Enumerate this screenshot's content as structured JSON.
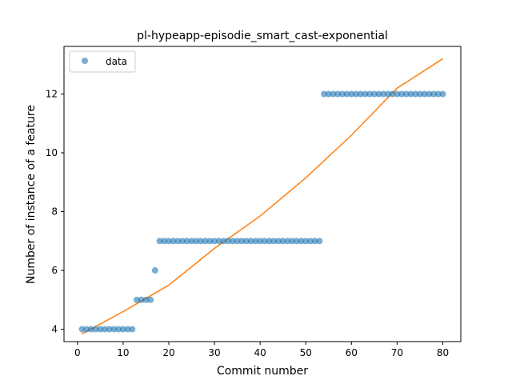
{
  "chart_data": {
    "type": "scatter",
    "title": "pl-hypeapp-episodie_smart_cast-exponential",
    "xlabel": "Commit number",
    "ylabel": "Number of instance of a feature",
    "xlim": [
      -2.95,
      83.95
    ],
    "ylim": [
      3.58,
      13.62
    ],
    "xticks": [
      0,
      10,
      20,
      30,
      40,
      50,
      60,
      70,
      80
    ],
    "yticks": [
      4,
      6,
      8,
      10,
      12
    ],
    "grid": false,
    "legend": {
      "placement": "top-left",
      "entries": [
        "data"
      ]
    },
    "series": [
      {
        "name": "data",
        "kind": "points",
        "color": "#1f77b4",
        "x": [
          1,
          2,
          3,
          4,
          5,
          6,
          7,
          8,
          9,
          10,
          11,
          12,
          13,
          14,
          15,
          16,
          17,
          18,
          19,
          20,
          21,
          22,
          23,
          24,
          25,
          26,
          27,
          28,
          29,
          30,
          31,
          32,
          33,
          34,
          35,
          36,
          37,
          38,
          39,
          40,
          41,
          42,
          43,
          44,
          45,
          46,
          47,
          48,
          49,
          50,
          51,
          52,
          53,
          54,
          55,
          56,
          57,
          58,
          59,
          60,
          61,
          62,
          63,
          64,
          65,
          66,
          67,
          68,
          69,
          70,
          71,
          72,
          73,
          74,
          75,
          76,
          77,
          78,
          79,
          80
        ],
        "y": [
          4,
          4,
          4,
          4,
          4,
          4,
          4,
          4,
          4,
          4,
          4,
          4,
          5,
          5,
          5,
          5,
          6,
          7,
          7,
          7,
          7,
          7,
          7,
          7,
          7,
          7,
          7,
          7,
          7,
          7,
          7,
          7,
          7,
          7,
          7,
          7,
          7,
          7,
          7,
          7,
          7,
          7,
          7,
          7,
          7,
          7,
          7,
          7,
          7,
          7,
          7,
          7,
          7,
          12,
          12,
          12,
          12,
          12,
          12,
          12,
          12,
          12,
          12,
          12,
          12,
          12,
          12,
          12,
          12,
          12,
          12,
          12,
          12,
          12,
          12,
          12,
          12,
          12,
          12,
          12
        ]
      },
      {
        "kind": "exponential-fit",
        "color": "#ff7f0e",
        "x": [
          1,
          10,
          20,
          30,
          40,
          50,
          60,
          70,
          80
        ],
        "y": [
          3.84,
          4.6,
          5.5,
          6.75,
          7.85,
          9.15,
          10.6,
          12.2,
          13.2
        ]
      }
    ]
  }
}
